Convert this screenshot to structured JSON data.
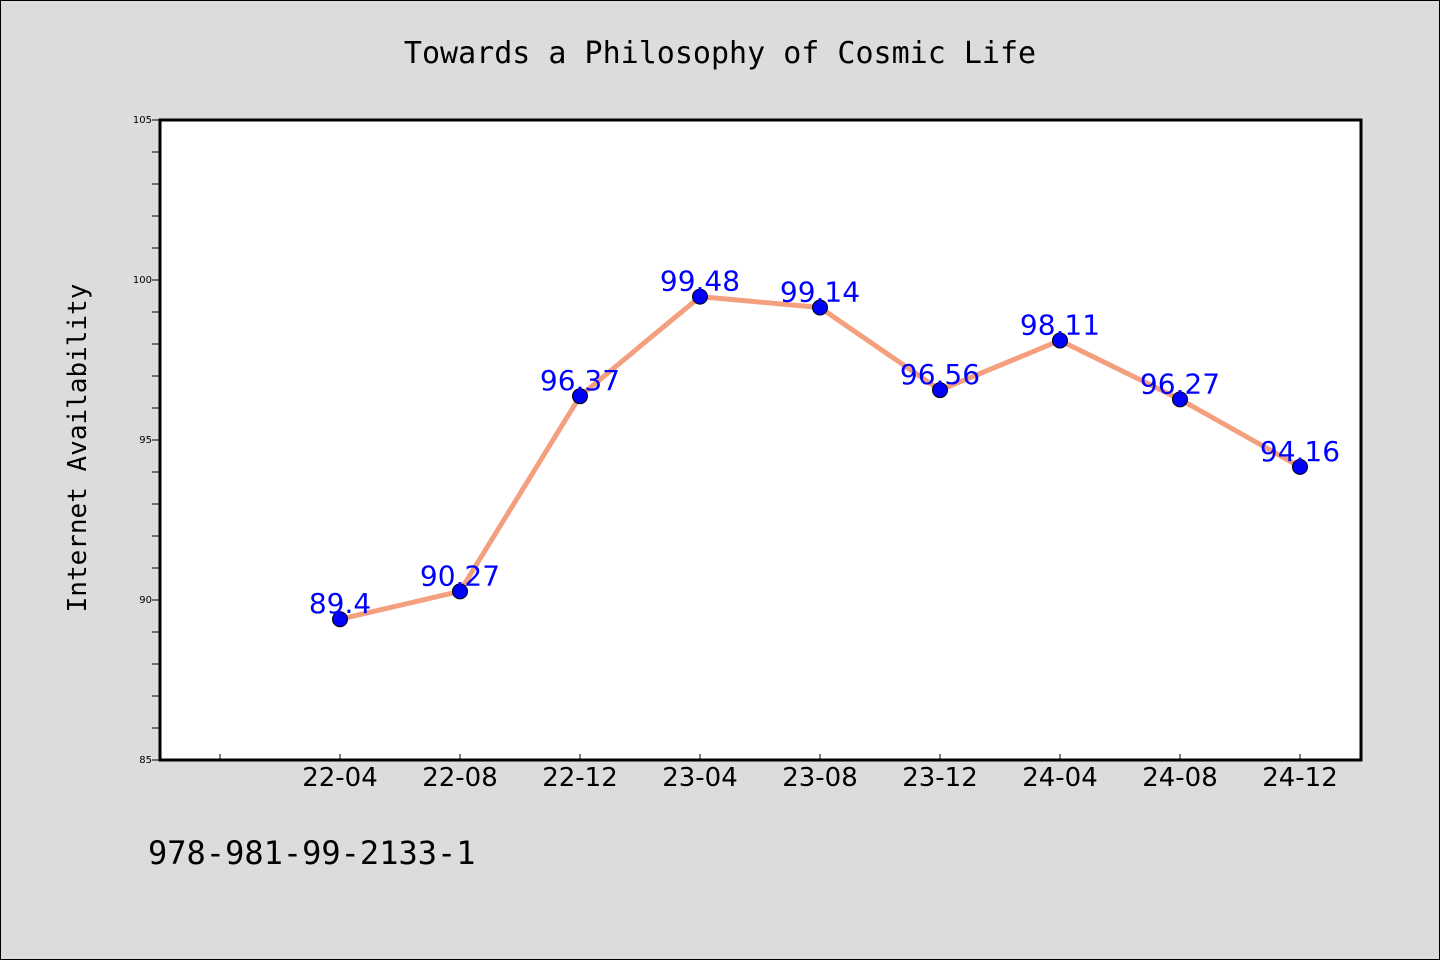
{
  "figure": {
    "background": "#dcdcdc",
    "footnote": "978-981-99-2133-1"
  },
  "chart_data": {
    "type": "line",
    "title": "Towards a Philosophy of Cosmic Life",
    "xlabel": "",
    "ylabel": "Internet Availability",
    "categories": [
      "22-04",
      "22-08",
      "22-12",
      "23-04",
      "23-08",
      "23-12",
      "24-04",
      "24-08",
      "24-12"
    ],
    "series": [
      {
        "values": [
          89.4,
          90.27,
          96.37,
          99.48,
          99.14,
          96.56,
          98.11,
          96.27,
          94.16
        ],
        "data_labels": [
          "89.4",
          "90.27",
          "96.37",
          "99.48",
          "99.14",
          "96.56",
          "98.11",
          "96.27",
          "94.16"
        ],
        "line_color": "#f4a07f",
        "marker_color": "#0000ff",
        "label_color": "#0000ff"
      }
    ],
    "ylim": [
      85,
      105
    ],
    "yticks": [
      85,
      90,
      95,
      100,
      105
    ],
    "grid": false,
    "legend": "none",
    "plot_background": "#ffffff"
  }
}
